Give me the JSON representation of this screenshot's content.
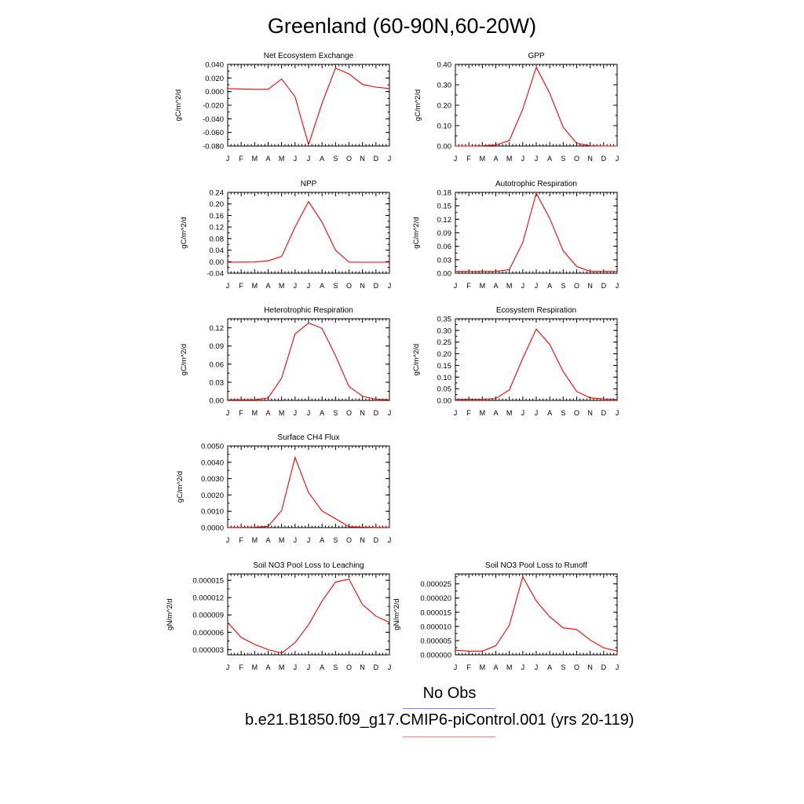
{
  "title": "Greenland (60-90N,60-20W)",
  "legend": {
    "obs_label": "No Obs",
    "model_label": "b.e21.B1850.f09_g17.CMIP6-piControl.001 (yrs 20-119)",
    "obs_color": "#8080ff",
    "model_color": "#ff8080"
  },
  "chart_data": [
    {
      "type": "line",
      "title": "Net Ecosystem Exchange",
      "ylabel": "gC/m^2/d",
      "categories": [
        "J",
        "F",
        "M",
        "A",
        "M",
        "J",
        "J",
        "A",
        "S",
        "O",
        "N",
        "D",
        "J"
      ],
      "yticks": [
        "0.040",
        "0.020",
        "0.000",
        "-0.020",
        "-0.040",
        "-0.060",
        "-0.080"
      ],
      "ylim": [
        -0.08,
        0.04
      ],
      "series": [
        {
          "color": "#ff0000",
          "values": [
            0.0045,
            0.0038,
            0.0033,
            0.0033,
            0.0185,
            -0.0075,
            -0.078,
            -0.017,
            0.0345,
            0.026,
            0.0105,
            0.0065,
            0.0045
          ]
        }
      ]
    },
    {
      "type": "line",
      "title": "GPP",
      "ylabel": "gC/m^2/d",
      "categories": [
        "J",
        "F",
        "M",
        "A",
        "M",
        "J",
        "J",
        "A",
        "S",
        "O",
        "N",
        "D",
        "J"
      ],
      "yticks": [
        "0.40",
        "0.30",
        "0.20",
        "0.10",
        "0.00"
      ],
      "ylim": [
        0,
        0.4
      ],
      "series": [
        {
          "color": "#ff0000",
          "values": [
            0.0,
            0.0,
            0.001,
            0.005,
            0.027,
            0.18,
            0.386,
            0.258,
            0.092,
            0.013,
            0.001,
            0.0,
            0.0
          ]
        }
      ]
    },
    {
      "type": "line",
      "title": "NPP",
      "ylabel": "gC/m^2/d",
      "categories": [
        "J",
        "F",
        "M",
        "A",
        "M",
        "J",
        "J",
        "A",
        "S",
        "O",
        "N",
        "D",
        "J"
      ],
      "yticks": [
        "0.24",
        "0.20",
        "0.16",
        "0.12",
        "0.08",
        "0.04",
        "0.00",
        "-0.04"
      ],
      "ylim": [
        -0.04,
        0.24
      ],
      "series": [
        {
          "color": "#ff0000",
          "values": [
            -0.002,
            -0.0015,
            -0.001,
            0.003,
            0.018,
            0.12,
            0.208,
            0.137,
            0.04,
            -0.0015,
            -0.002,
            -0.002,
            -0.002
          ]
        }
      ]
    },
    {
      "type": "line",
      "title": "Autotrophic Respiration",
      "ylabel": "gC/m^2/d",
      "categories": [
        "J",
        "F",
        "M",
        "A",
        "M",
        "J",
        "J",
        "A",
        "S",
        "O",
        "N",
        "D",
        "J"
      ],
      "yticks": [
        "0.18",
        "0.15",
        "0.12",
        "0.09",
        "0.06",
        "0.03",
        "0.00"
      ],
      "ylim": [
        0,
        0.18
      ],
      "series": [
        {
          "color": "#ff0000",
          "values": [
            0.004,
            0.004,
            0.004,
            0.004,
            0.008,
            0.068,
            0.178,
            0.122,
            0.05,
            0.015,
            0.004,
            0.004,
            0.004
          ]
        }
      ]
    },
    {
      "type": "line",
      "title": "Heterotrophic Respiration",
      "ylabel": "gC/m^2/d",
      "categories": [
        "J",
        "F",
        "M",
        "A",
        "M",
        "J",
        "J",
        "A",
        "S",
        "O",
        "N",
        "D",
        "J"
      ],
      "yticks": [
        "0.12",
        "0.09",
        "0.06",
        "0.03",
        "0.00"
      ],
      "ylim": [
        0,
        0.135
      ],
      "series": [
        {
          "color": "#ff0000",
          "values": [
            0.001,
            0.001,
            0.001,
            0.004,
            0.037,
            0.11,
            0.128,
            0.119,
            0.074,
            0.023,
            0.007,
            0.002,
            0.001
          ]
        }
      ]
    },
    {
      "type": "line",
      "title": "Ecosystem Respiration",
      "ylabel": "gC/m^2/d",
      "categories": [
        "J",
        "F",
        "M",
        "A",
        "M",
        "J",
        "J",
        "A",
        "S",
        "O",
        "N",
        "D",
        "J"
      ],
      "yticks": [
        "0.35",
        "0.30",
        "0.25",
        "0.20",
        "0.15",
        "0.10",
        "0.05",
        "0.00"
      ],
      "ylim": [
        0,
        0.35
      ],
      "series": [
        {
          "color": "#ff0000",
          "values": [
            0.005,
            0.005,
            0.005,
            0.008,
            0.045,
            0.18,
            0.306,
            0.24,
            0.124,
            0.038,
            0.011,
            0.006,
            0.005
          ]
        }
      ]
    },
    {
      "type": "line",
      "title": "Surface CH4 Flux",
      "ylabel": "gC/m^2/d",
      "categories": [
        "J",
        "F",
        "M",
        "A",
        "M",
        "J",
        "J",
        "A",
        "S",
        "O",
        "N",
        "D",
        "J"
      ],
      "yticks": [
        "0.0050",
        "0.0040",
        "0.0030",
        "0.0020",
        "0.0010",
        "0.0000"
      ],
      "ylim": [
        0,
        0.005
      ],
      "series": [
        {
          "color": "#ff0000",
          "values": [
            1e-05,
            1e-05,
            2e-05,
            8e-05,
            0.00105,
            0.0043,
            0.00215,
            0.00102,
            0.00055,
            6e-05,
            3e-05,
            1e-05,
            1e-05
          ]
        }
      ]
    },
    {
      "type": "line",
      "title": "Soil NO3 Pool Loss to Leaching",
      "ylabel": "gN/m^2/d",
      "categories": [
        "J",
        "F",
        "M",
        "A",
        "M",
        "J",
        "J",
        "A",
        "S",
        "O",
        "N",
        "D",
        "J"
      ],
      "yticks": [
        "0.000015",
        "0.000012",
        "0.000009",
        "0.000006",
        "0.000003"
      ],
      "ylim": [
        2.1e-06,
        1.61e-05
      ],
      "series": [
        {
          "color": "#ff0000",
          "values": [
            7.7e-06,
            5.1e-06,
            3.9e-06,
            3e-06,
            2.4e-06,
            4.2e-06,
            7.3e-06,
            1.14e-05,
            1.47e-05,
            1.52e-05,
            1.08e-05,
            8.8e-06,
            7.7e-06
          ]
        }
      ]
    },
    {
      "type": "line",
      "title": "Soil NO3 Pool Loss to Runoff",
      "ylabel": "gN/m^2/d",
      "categories": [
        "J",
        "F",
        "M",
        "A",
        "M",
        "J",
        "J",
        "A",
        "S",
        "O",
        "N",
        "D",
        "J"
      ],
      "yticks": [
        "0.000025",
        "0.000020",
        "0.000015",
        "0.000010",
        "0.000005",
        "0.000000"
      ],
      "ylim": [
        0,
        2.85e-05
      ],
      "series": [
        {
          "color": "#ff0000",
          "values": [
            1.6e-06,
            1.3e-06,
            1.3e-06,
            3.2e-06,
            1.04e-05,
            2.75e-05,
            1.9e-05,
            1.34e-05,
            9.5e-06,
            8.9e-06,
            5.2e-06,
            2.5e-06,
            1.3e-06
          ]
        }
      ]
    }
  ]
}
